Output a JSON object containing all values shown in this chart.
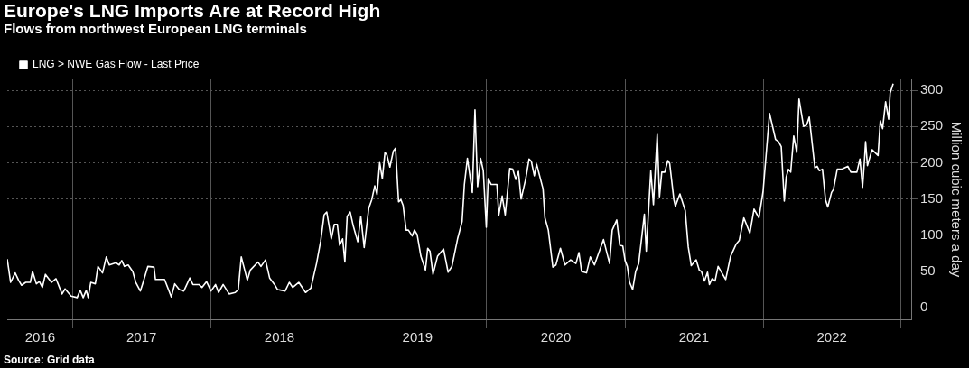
{
  "chart_data": {
    "type": "line",
    "title": "Europe's LNG Imports Are at Record High",
    "subtitle": "Flows from northwest European LNG terminals",
    "ylabel": "Million cubic meters a day",
    "annotations": [
      "Source: Grid data"
    ],
    "legend": "top left",
    "grid": true,
    "line_style": "solid",
    "marker": "none",
    "xlim": [
      "2016-07-12",
      "2023-01-30"
    ],
    "xticks": [
      {
        "value": "2016-10-07",
        "label": "2016"
      },
      {
        "value": "2017-01-01",
        "label": null
      },
      {
        "value": "2017-07-02",
        "label": "2017"
      },
      {
        "value": "2018-01-01",
        "label": null
      },
      {
        "value": "2018-07-02",
        "label": "2018"
      },
      {
        "value": "2019-01-01",
        "label": null
      },
      {
        "value": "2019-07-02",
        "label": "2019"
      },
      {
        "value": "2020-01-01",
        "label": null
      },
      {
        "value": "2020-07-02",
        "label": "2020"
      },
      {
        "value": "2021-01-01",
        "label": null
      },
      {
        "value": "2021-07-02",
        "label": "2021"
      },
      {
        "value": "2022-01-01",
        "label": null
      },
      {
        "value": "2022-07-02",
        "label": "2022"
      },
      {
        "value": "2023-01-01",
        "label": null
      }
    ],
    "ylim": [
      -16,
      315
    ],
    "yticks": [
      0,
      50,
      100,
      150,
      200,
      250,
      300
    ],
    "series": [
      {
        "name": "LNG > NWE Gas Flow - Last Price",
        "color": "#ffffff",
        "x": [
          "2016-07-12",
          "2016-07-21",
          "2016-08-02",
          "2016-08-11",
          "2016-08-19",
          "2016-08-30",
          "2016-09-11",
          "2016-09-17",
          "2016-09-27",
          "2016-10-05",
          "2016-10-13",
          "2016-10-21",
          "2016-11-06",
          "2016-11-18",
          "2016-12-04",
          "2016-12-12",
          "2016-12-28",
          "2017-01-13",
          "2017-01-21",
          "2017-01-29",
          "2017-02-06",
          "2017-02-11",
          "2017-02-18",
          "2017-03-02",
          "2017-03-09",
          "2017-03-21",
          "2017-03-31",
          "2017-04-08",
          "2017-04-26",
          "2017-05-04",
          "2017-05-11",
          "2017-05-18",
          "2017-05-28",
          "2017-06-09",
          "2017-06-17",
          "2017-06-29",
          "2017-07-07",
          "2017-07-19",
          "2017-08-04",
          "2017-08-08",
          "2017-09-01",
          "2017-09-19",
          "2017-09-28",
          "2017-10-10",
          "2017-10-22",
          "2017-11-07",
          "2017-11-15",
          "2017-12-01",
          "2017-12-09",
          "2017-12-21",
          "2018-01-02",
          "2018-01-14",
          "2018-01-22",
          "2018-02-03",
          "2018-02-19",
          "2018-03-07",
          "2018-03-15",
          "2018-03-23",
          "2018-04-08",
          "2018-04-16",
          "2018-05-06",
          "2018-05-14",
          "2018-05-26",
          "2018-06-06",
          "2018-06-19",
          "2018-06-27",
          "2018-07-17",
          "2018-07-28",
          "2018-08-06",
          "2018-08-22",
          "2018-09-09",
          "2018-09-23",
          "2018-10-08",
          "2018-10-19",
          "2018-10-28",
          "2018-11-04",
          "2018-11-16",
          "2018-11-24",
          "2018-12-02",
          "2018-12-08",
          "2018-12-16",
          "2018-12-22",
          "2018-12-28",
          "2019-01-05",
          "2019-01-13",
          "2019-01-25",
          "2019-02-02",
          "2019-02-11",
          "2019-02-23",
          "2019-03-03",
          "2019-03-11",
          "2019-03-17",
          "2019-03-24",
          "2019-03-31",
          "2019-04-07",
          "2019-04-12",
          "2019-04-20",
          "2019-04-29",
          "2019-05-05",
          "2019-05-13",
          "2019-05-19",
          "2019-05-25",
          "2019-06-02",
          "2019-06-08",
          "2019-06-18",
          "2019-06-24",
          "2019-07-01",
          "2019-07-11",
          "2019-07-23",
          "2019-07-29",
          "2019-08-04",
          "2019-08-12",
          "2019-08-24",
          "2019-09-09",
          "2019-09-21",
          "2019-10-01",
          "2019-10-16",
          "2019-10-28",
          "2019-11-03",
          "2019-11-11",
          "2019-11-24",
          "2019-12-01",
          "2019-12-08",
          "2019-12-16",
          "2019-12-23",
          "2019-12-31",
          "2020-01-05",
          "2020-01-13",
          "2020-01-28",
          "2020-02-02",
          "2020-02-11",
          "2020-02-19",
          "2020-03-02",
          "2020-03-10",
          "2020-03-18",
          "2020-03-25",
          "2020-04-01",
          "2020-04-13",
          "2020-04-22",
          "2020-04-28",
          "2020-05-06",
          "2020-05-12",
          "2020-05-29",
          "2020-06-03",
          "2020-06-12",
          "2020-06-24",
          "2020-07-02",
          "2020-07-14",
          "2020-07-26",
          "2020-08-10",
          "2020-08-24",
          "2020-09-01",
          "2020-09-08",
          "2020-09-21",
          "2020-10-01",
          "2020-10-12",
          "2020-11-05",
          "2020-11-21",
          "2020-11-28",
          "2020-12-10",
          "2020-12-18",
          "2020-12-26",
          "2021-01-01",
          "2021-01-07",
          "2021-01-13",
          "2021-01-21",
          "2021-01-29",
          "2021-02-06",
          "2021-02-21",
          "2021-02-26",
          "2021-03-10",
          "2021-03-17",
          "2021-03-27",
          "2021-04-02",
          "2021-04-08",
          "2021-04-16",
          "2021-04-24",
          "2021-04-29",
          "2021-05-10",
          "2021-05-14",
          "2021-05-26",
          "2021-06-09",
          "2021-06-17",
          "2021-06-25",
          "2021-07-08",
          "2021-07-16",
          "2021-07-22",
          "2021-07-30",
          "2021-08-07",
          "2021-08-12",
          "2021-08-19",
          "2021-08-27",
          "2021-09-04",
          "2021-09-24",
          "2021-10-07",
          "2021-10-22",
          "2021-10-30",
          "2021-11-11",
          "2021-11-27",
          "2021-12-08",
          "2021-12-21",
          "2022-01-01",
          "2022-01-18",
          "2022-02-03",
          "2022-02-11",
          "2022-02-18",
          "2022-02-26",
          "2022-03-03",
          "2022-03-09",
          "2022-03-15",
          "2022-03-23",
          "2022-03-31",
          "2022-04-06",
          "2022-04-18",
          "2022-04-26",
          "2022-05-03",
          "2022-05-18",
          "2022-05-24",
          "2022-05-30",
          "2022-06-07",
          "2022-06-15",
          "2022-06-21",
          "2022-07-01",
          "2022-07-06",
          "2022-07-16",
          "2022-07-28",
          "2022-08-05",
          "2022-08-13",
          "2022-08-21",
          "2022-09-06",
          "2022-09-14",
          "2022-09-21",
          "2022-09-26",
          "2022-09-29",
          "2022-10-04",
          "2022-10-16",
          "2022-11-01",
          "2022-11-07",
          "2022-11-13",
          "2022-11-21",
          "2022-11-29",
          "2022-12-03",
          "2022-12-11"
        ],
        "values": [
          67,
          35,
          48,
          38,
          31,
          35,
          35,
          50,
          33,
          36,
          28,
          46,
          35,
          40,
          19,
          26,
          16,
          14,
          24,
          14,
          24,
          14,
          35,
          33,
          57,
          48,
          70,
          59,
          62,
          59,
          65,
          57,
          59,
          50,
          35,
          23,
          36,
          57,
          56,
          39,
          39,
          15,
          33,
          25,
          23,
          41,
          32,
          32,
          28,
          36,
          23,
          32,
          21,
          32,
          19,
          21,
          25,
          70,
          38,
          52,
          63,
          57,
          66,
          41,
          32,
          25,
          23,
          35,
          28,
          35,
          21,
          27,
          61,
          92,
          128,
          132,
          95,
          115,
          115,
          86,
          95,
          63,
          126,
          132,
          113,
          91,
          126,
          83,
          137,
          149,
          168,
          156,
          200,
          178,
          214,
          211,
          194,
          216,
          220,
          146,
          149,
          141,
          107,
          107,
          99,
          107,
          101,
          71,
          52,
          82,
          78,
          46,
          71,
          81,
          49,
          57,
          95,
          119,
          170,
          206,
          159,
          273,
          167,
          206,
          189,
          111,
          178,
          170,
          170,
          128,
          154,
          128,
          192,
          191,
          177,
          188,
          150,
          177,
          205,
          202,
          182,
          198,
          164,
          124,
          107,
          56,
          59,
          82,
          59,
          66,
          61,
          76,
          50,
          48,
          70,
          59,
          94,
          61,
          107,
          121,
          86,
          85,
          65,
          57,
          35,
          25,
          50,
          61,
          129,
          78,
          189,
          142,
          239,
          153,
          187,
          187,
          203,
          199,
          149,
          140,
          157,
          134,
          84,
          58,
          66,
          52,
          50,
          37,
          49,
          32,
          40,
          37,
          57,
          39,
          71,
          88,
          93,
          124,
          103,
          136,
          124,
          161,
          268,
          232,
          229,
          222,
          147,
          180,
          191,
          187,
          237,
          214,
          288,
          250,
          252,
          263,
          193,
          195,
          189,
          191,
          149,
          139,
          159,
          163,
          191,
          191,
          193,
          195,
          187,
          187,
          205,
          166,
          203,
          229,
          196,
          218,
          210,
          258,
          247,
          284,
          260,
          296,
          309
        ]
      }
    ]
  }
}
